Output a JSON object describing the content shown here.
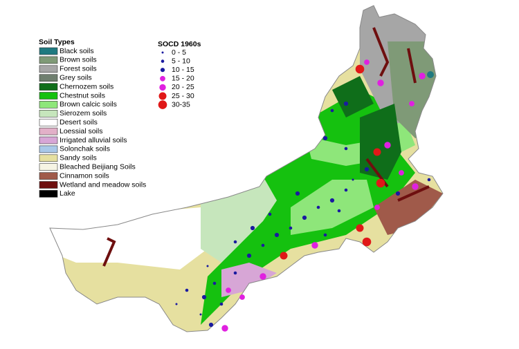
{
  "soil_legend": {
    "title": "Soil Types",
    "items": [
      {
        "label": "Black soils",
        "color": "#1f7a80"
      },
      {
        "label": "Brown soils",
        "color": "#7f9a77"
      },
      {
        "label": "Forest soils",
        "color": "#a6a6a6"
      },
      {
        "label": "Grey soils",
        "color": "#6f7f6f"
      },
      {
        "label": "Chernozem soils",
        "color": "#0f6e1a"
      },
      {
        "label": "Chestnut soils",
        "color": "#15c10f"
      },
      {
        "label": "Brown calcic soils",
        "color": "#8ee67a"
      },
      {
        "label": "Sierozem soils",
        "color": "#c6e6bc"
      },
      {
        "label": "Desert soils",
        "color": "#ffffff"
      },
      {
        "label": "Loessial soils",
        "color": "#e2b0c8"
      },
      {
        "label": "Irrigated alluvial soils",
        "color": "#d7a6d6"
      },
      {
        "label": "Solonchak soils",
        "color": "#a9c8e8"
      },
      {
        "label": "Sandy soils",
        "color": "#e6e0a0"
      },
      {
        "label": "Bleached Beijiang Soils",
        "color": "#f6f4e4"
      },
      {
        "label": "Cinnamon soils",
        "color": "#a05a4a"
      },
      {
        "label": "Wetland and meadow soils",
        "color": "#6e0f0f"
      },
      {
        "label": "Lake",
        "color": "#000000"
      }
    ]
  },
  "socd_legend": {
    "title": "SOCD 1960s",
    "items": [
      {
        "label": "0 - 5",
        "color": "#1a1aa0"
      },
      {
        "label": "5 - 10",
        "color": "#1a1aa0"
      },
      {
        "label": "10 - 15",
        "color": "#1a1aa0"
      },
      {
        "label": "15 - 20",
        "color": "#e020e0"
      },
      {
        "label": "20 - 25",
        "color": "#e020e0"
      },
      {
        "label": "25 - 30",
        "color": "#e01818"
      },
      {
        "label": "30-35",
        "color": "#e01818"
      }
    ]
  }
}
